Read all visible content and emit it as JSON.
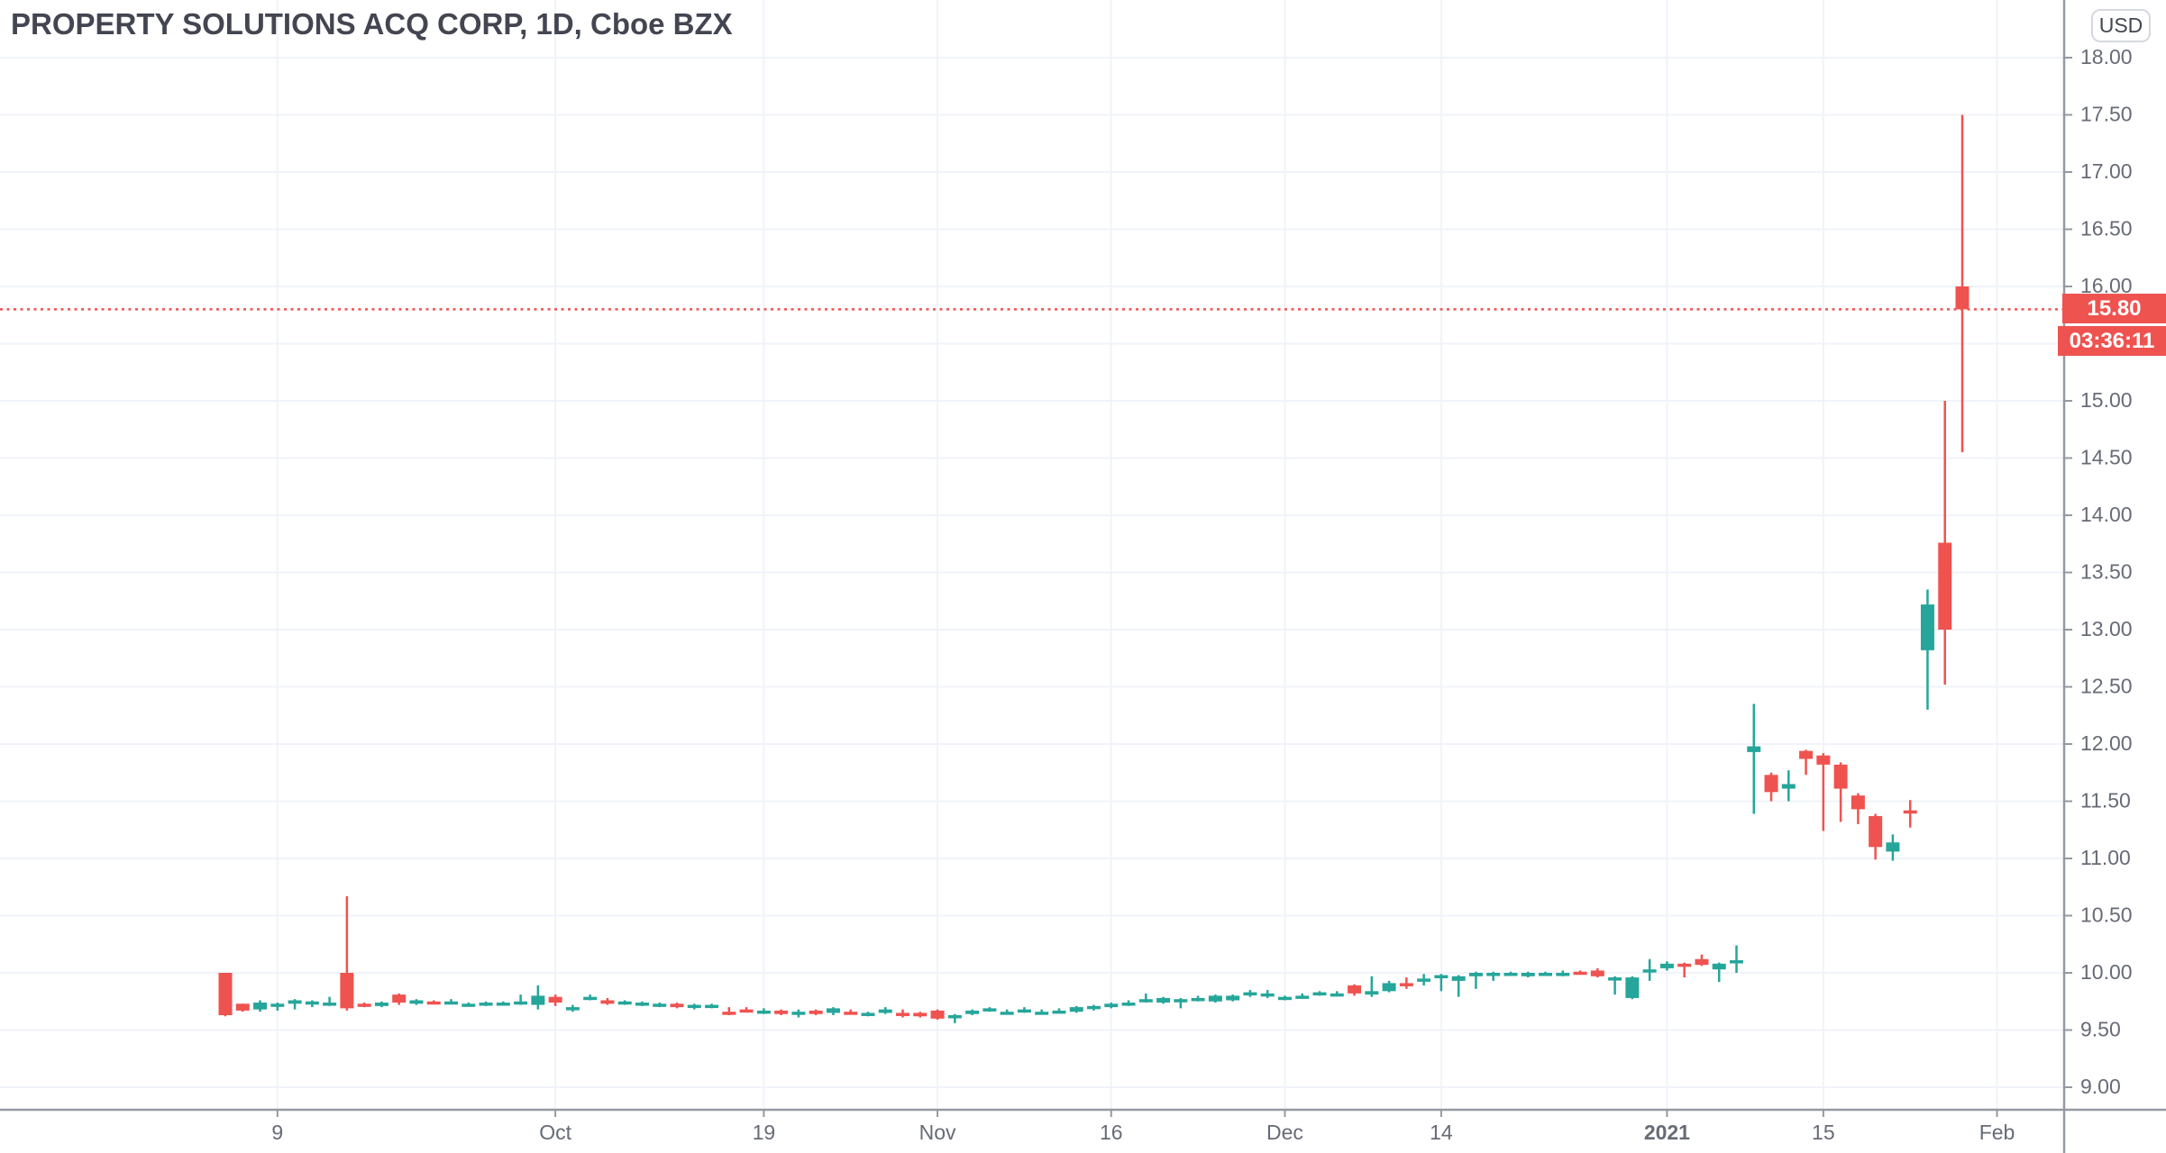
{
  "header": {
    "symbol_title": "PROPERTY SOLUTIONS ACQ CORP, 1D, Cboe BZX",
    "currency_button": "USD"
  },
  "price_label": {
    "value": "15.80",
    "countdown": "03:36:11"
  },
  "colors": {
    "up": "#26a69a",
    "down": "#ef5350",
    "grid": "#f0f3fa",
    "axis_border": "#9599a3",
    "axis_text": "#676b76",
    "title_text": "#434651",
    "label_bg": "#ef5350",
    "label_text": "#ffffff"
  },
  "chart_data": {
    "type": "candlestick",
    "title": "PROPERTY SOLUTIONS ACQ CORP, 1D, Cboe BZX",
    "interval": "1D",
    "exchange": "Cboe BZX",
    "currency": "USD",
    "last_price": 15.8,
    "grid": "on",
    "y_axis": {
      "min": 9.0,
      "max": 18.0,
      "step": 0.5,
      "side": "right",
      "labels": [
        "18.00",
        "17.50",
        "17.00",
        "16.50",
        "16.00",
        "15.50",
        "15.00",
        "14.50",
        "14.00",
        "13.50",
        "13.00",
        "12.50",
        "12.00",
        "11.50",
        "11.00",
        "10.50",
        "10.00",
        "9.50",
        "9.00"
      ]
    },
    "x_axis": {
      "ticks": [
        {
          "label": "9",
          "index": 3,
          "bold": false
        },
        {
          "label": "Oct",
          "index": 19,
          "bold": false
        },
        {
          "label": "19",
          "index": 31,
          "bold": false
        },
        {
          "label": "Nov",
          "index": 41,
          "bold": false
        },
        {
          "label": "16",
          "index": 51,
          "bold": false
        },
        {
          "label": "Dec",
          "index": 61,
          "bold": false
        },
        {
          "label": "14",
          "index": 70,
          "bold": false
        },
        {
          "label": "2021",
          "index": 83,
          "bold": true
        },
        {
          "label": "15",
          "index": 92,
          "bold": false
        },
        {
          "label": "Feb",
          "index": 102,
          "bold": false
        }
      ]
    },
    "candles_format": [
      "open",
      "high",
      "low",
      "close"
    ],
    "candles": [
      [
        10.0,
        10.0,
        9.62,
        9.63
      ],
      [
        9.73,
        9.73,
        9.66,
        9.67
      ],
      [
        9.68,
        9.76,
        9.66,
        9.74
      ],
      [
        9.72,
        9.74,
        9.67,
        9.73
      ],
      [
        9.73,
        9.77,
        9.68,
        9.76
      ],
      [
        9.74,
        9.76,
        9.7,
        9.75
      ],
      [
        9.72,
        9.79,
        9.71,
        9.74
      ],
      [
        10.0,
        10.67,
        9.67,
        9.69
      ],
      [
        9.73,
        9.74,
        9.7,
        9.71
      ],
      [
        9.71,
        9.75,
        9.7,
        9.74
      ],
      [
        9.81,
        9.82,
        9.72,
        9.74
      ],
      [
        9.73,
        9.77,
        9.72,
        9.76
      ],
      [
        9.75,
        9.76,
        9.73,
        9.74
      ],
      [
        9.74,
        9.77,
        9.73,
        9.75
      ],
      [
        9.72,
        9.74,
        9.71,
        9.73
      ],
      [
        9.72,
        9.75,
        9.71,
        9.74
      ],
      [
        9.73,
        9.75,
        9.72,
        9.74
      ],
      [
        9.73,
        9.81,
        9.72,
        9.75
      ],
      [
        9.72,
        9.89,
        9.68,
        9.8
      ],
      [
        9.79,
        9.81,
        9.71,
        9.74
      ],
      [
        9.68,
        9.72,
        9.66,
        9.7
      ],
      [
        9.77,
        9.81,
        9.76,
        9.79
      ],
      [
        9.76,
        9.78,
        9.72,
        9.73
      ],
      [
        9.74,
        9.76,
        9.72,
        9.75
      ],
      [
        9.73,
        9.75,
        9.71,
        9.74
      ],
      [
        9.72,
        9.74,
        9.7,
        9.73
      ],
      [
        9.73,
        9.74,
        9.69,
        9.7
      ],
      [
        9.7,
        9.73,
        9.68,
        9.72
      ],
      [
        9.71,
        9.73,
        9.69,
        9.72
      ],
      [
        9.66,
        9.7,
        9.63,
        9.65
      ],
      [
        9.68,
        9.7,
        9.66,
        9.67
      ],
      [
        9.66,
        9.69,
        9.64,
        9.67
      ],
      [
        9.67,
        9.68,
        9.63,
        9.64
      ],
      [
        9.66,
        9.68,
        9.61,
        9.66
      ],
      [
        9.67,
        9.68,
        9.63,
        9.64
      ],
      [
        9.65,
        9.7,
        9.63,
        9.69
      ],
      [
        9.66,
        9.68,
        9.64,
        9.65
      ],
      [
        9.64,
        9.66,
        9.62,
        9.65
      ],
      [
        9.65,
        9.7,
        9.64,
        9.68
      ],
      [
        9.65,
        9.68,
        9.61,
        9.64
      ],
      [
        9.65,
        9.66,
        9.61,
        9.62
      ],
      [
        9.67,
        9.68,
        9.59,
        9.6
      ],
      [
        9.62,
        9.64,
        9.56,
        9.63
      ],
      [
        9.64,
        9.68,
        9.63,
        9.67
      ],
      [
        9.68,
        9.7,
        9.66,
        9.69
      ],
      [
        9.65,
        9.68,
        9.64,
        9.66
      ],
      [
        9.67,
        9.7,
        9.65,
        9.68
      ],
      [
        9.65,
        9.68,
        9.64,
        9.66
      ],
      [
        9.66,
        9.69,
        9.65,
        9.67
      ],
      [
        9.66,
        9.71,
        9.65,
        9.7
      ],
      [
        9.69,
        9.72,
        9.67,
        9.71
      ],
      [
        9.7,
        9.74,
        9.69,
        9.73
      ],
      [
        9.73,
        9.76,
        9.71,
        9.74
      ],
      [
        9.76,
        9.82,
        9.74,
        9.77
      ],
      [
        9.74,
        9.79,
        9.73,
        9.78
      ],
      [
        9.76,
        9.78,
        9.69,
        9.77
      ],
      [
        9.77,
        9.8,
        9.75,
        9.78
      ],
      [
        9.75,
        9.81,
        9.74,
        9.8
      ],
      [
        9.76,
        9.81,
        9.75,
        9.8
      ],
      [
        9.81,
        9.85,
        9.79,
        9.83
      ],
      [
        9.81,
        9.85,
        9.78,
        9.82
      ],
      [
        9.78,
        9.8,
        9.76,
        9.79
      ],
      [
        9.79,
        9.82,
        9.78,
        9.8
      ],
      [
        9.81,
        9.84,
        9.8,
        9.83
      ],
      [
        9.82,
        9.84,
        9.81,
        9.82
      ],
      [
        9.89,
        9.9,
        9.8,
        9.82
      ],
      [
        9.81,
        9.97,
        9.79,
        9.84
      ],
      [
        9.84,
        9.93,
        9.83,
        9.91
      ],
      [
        9.91,
        9.96,
        9.86,
        9.89
      ],
      [
        9.94,
        9.99,
        9.89,
        9.95
      ],
      [
        9.96,
        9.99,
        9.84,
        9.98
      ],
      [
        9.93,
        9.98,
        9.79,
        9.97
      ],
      [
        9.97,
        10.01,
        9.86,
        10.0
      ],
      [
        9.99,
        10.01,
        9.93,
        10.0
      ],
      [
        9.99,
        10.01,
        9.98,
        10.0
      ],
      [
        9.97,
        10.01,
        9.96,
        10.0
      ],
      [
        10.0,
        10.01,
        9.98,
        10.0
      ],
      [
        10.0,
        10.02,
        9.97,
        10.0
      ],
      [
        10.01,
        10.02,
        9.99,
        10.0
      ],
      [
        10.02,
        10.04,
        9.96,
        9.97
      ],
      [
        9.95,
        9.97,
        9.81,
        9.96
      ],
      [
        9.78,
        9.97,
        9.77,
        9.96
      ],
      [
        10.01,
        10.12,
        9.93,
        10.03
      ],
      [
        10.04,
        10.1,
        10.02,
        10.08
      ],
      [
        10.08,
        10.09,
        9.96,
        10.06
      ],
      [
        10.12,
        10.16,
        10.06,
        10.07
      ],
      [
        10.03,
        10.09,
        9.92,
        10.08
      ],
      [
        10.09,
        10.24,
        10.0,
        10.11
      ],
      [
        11.93,
        12.35,
        11.39,
        11.98
      ],
      [
        11.73,
        11.75,
        11.5,
        11.58
      ],
      [
        11.61,
        11.77,
        11.5,
        11.65
      ],
      [
        11.94,
        11.95,
        11.73,
        11.87
      ],
      [
        11.9,
        11.92,
        11.24,
        11.82
      ],
      [
        11.82,
        11.84,
        11.32,
        11.61
      ],
      [
        11.55,
        11.57,
        11.3,
        11.43
      ],
      [
        11.37,
        11.39,
        10.99,
        11.1
      ],
      [
        11.06,
        11.21,
        10.98,
        11.14
      ],
      [
        11.42,
        11.51,
        11.27,
        11.41
      ],
      [
        12.82,
        13.35,
        12.3,
        13.22
      ],
      [
        13.76,
        15.0,
        12.52,
        13.0
      ],
      [
        16.0,
        17.5,
        14.55,
        15.8
      ]
    ]
  }
}
